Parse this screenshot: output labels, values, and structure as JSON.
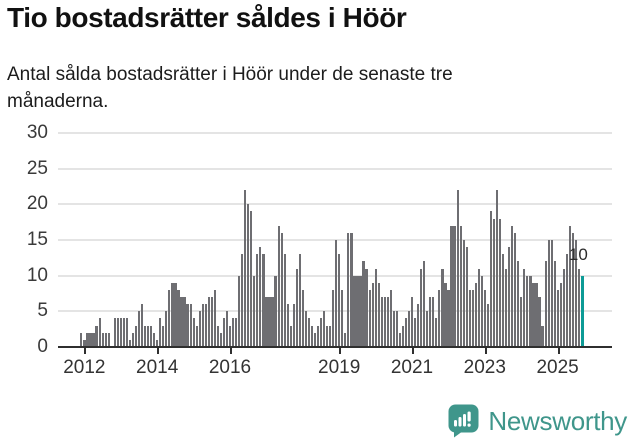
{
  "header": {
    "title": "Tio bostadsrätter såldes i Höör",
    "subtitle": "Antal sålda bostadsrätter i Höör under de senaste tre månaderna."
  },
  "colors": {
    "bar": "#6e6e72",
    "highlight_bar": "#0d9b96",
    "gridline": "#e4e4e4",
    "axis": "#2f2f2f",
    "logo_teal": "#3f968b"
  },
  "chart_data": {
    "type": "bar",
    "title": "Tio bostadsrätter såldes i Höör",
    "xlabel": "",
    "ylabel": "",
    "ylim": [
      0,
      30
    ],
    "grid": "horizontal",
    "yticks": [
      0,
      5,
      10,
      15,
      20,
      25,
      30
    ],
    "xticks": [
      {
        "label": "2012",
        "month_index": 1
      },
      {
        "label": "2014",
        "month_index": 25
      },
      {
        "label": "2016",
        "month_index": 49
      },
      {
        "label": "2019",
        "month_index": 85
      },
      {
        "label": "2021",
        "month_index": 109
      },
      {
        "label": "2023",
        "month_index": 133
      },
      {
        "label": "2025",
        "month_index": 157
      }
    ],
    "start_month": "2011-12",
    "end_month": "2025-09",
    "values": [
      2,
      1,
      2,
      2,
      2,
      3,
      4,
      2,
      2,
      2,
      0,
      4,
      4,
      4,
      4,
      4,
      1,
      2,
      3,
      5,
      6,
      3,
      3,
      3,
      2,
      1,
      4,
      3,
      5,
      8,
      9,
      9,
      8,
      7,
      7,
      6,
      6,
      4,
      3,
      5,
      6,
      6,
      7,
      7,
      8,
      3,
      2,
      4,
      5,
      3,
      4,
      4,
      10,
      13,
      22,
      20,
      19,
      10,
      13,
      14,
      13,
      7,
      7,
      7,
      10,
      17,
      16,
      13,
      6,
      3,
      6,
      11,
      13,
      8,
      5,
      4,
      3,
      2,
      3,
      4,
      5,
      3,
      3,
      8,
      15,
      13,
      8,
      2,
      16,
      16,
      10,
      10,
      10,
      12,
      11,
      8,
      9,
      11,
      9,
      7,
      7,
      7,
      8,
      5,
      5,
      2,
      3,
      4,
      5,
      7,
      4,
      6,
      11,
      12,
      5,
      7,
      7,
      4,
      8,
      11,
      9,
      8,
      17,
      17,
      22,
      17,
      15,
      14,
      8,
      8,
      9,
      11,
      10,
      8,
      6,
      19,
      18,
      22,
      18,
      13,
      11,
      14,
      17,
      16,
      12,
      7,
      11,
      10,
      10,
      9,
      9,
      7,
      3,
      12,
      15,
      15,
      12,
      8,
      9,
      11,
      13,
      17,
      16,
      15,
      11,
      10
    ],
    "highlight_last": true,
    "annotation": {
      "text": "10",
      "applies_to": "last-bar"
    }
  },
  "footer": {
    "brand": "Newsworthy"
  }
}
